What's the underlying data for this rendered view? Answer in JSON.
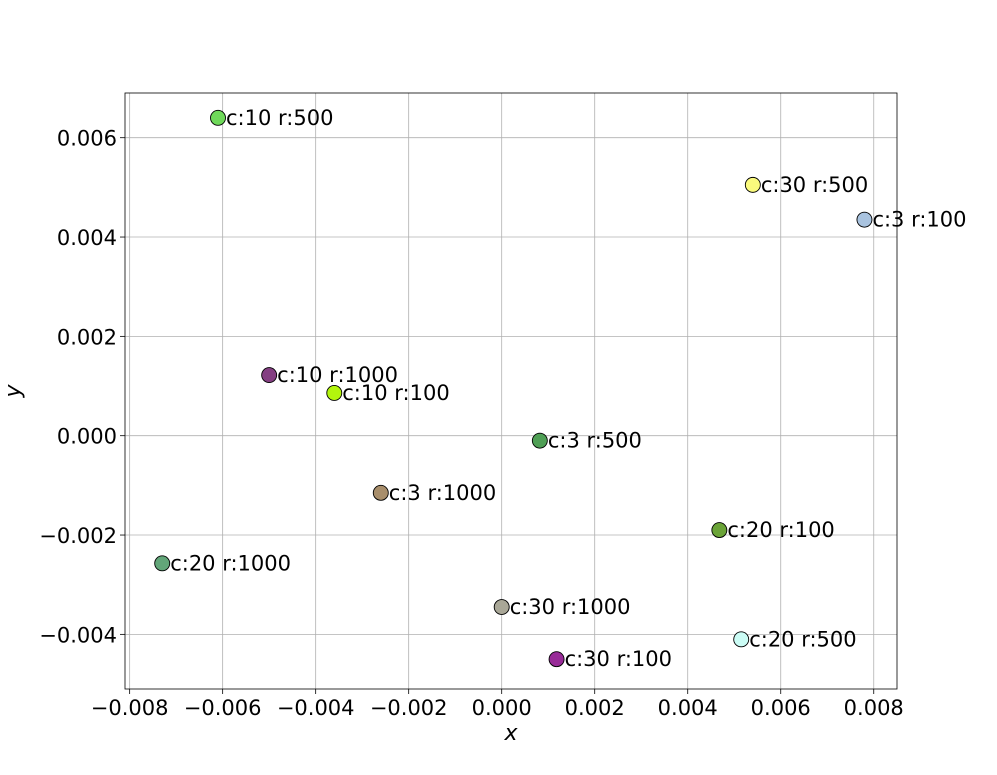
{
  "chart_data": {
    "type": "scatter",
    "title": "",
    "xlabel": "x",
    "ylabel": "y",
    "xlim": [
      -0.0081,
      0.0085
    ],
    "ylim": [
      -0.0051,
      0.0069
    ],
    "grid": true,
    "xticks": [
      -0.008,
      -0.006,
      -0.004,
      -0.002,
      0.0,
      0.002,
      0.004,
      0.006,
      0.008
    ],
    "xtick_labels": [
      "−0.008",
      "−0.006",
      "−0.004",
      "−0.002",
      "0.000",
      "0.002",
      "0.004",
      "0.006",
      "0.008"
    ],
    "yticks": [
      -0.004,
      -0.002,
      0.0,
      0.002,
      0.004,
      0.006
    ],
    "ytick_labels": [
      "−0.004",
      "−0.002",
      "0.000",
      "0.002",
      "0.004",
      "0.006"
    ],
    "points": [
      {
        "label": "c:10 r:500",
        "x": -0.0061,
        "y": 0.0064,
        "color": "#6fd95a"
      },
      {
        "label": "c:30 r:500",
        "x": 0.0054,
        "y": 0.00505,
        "color": "#fafa7d"
      },
      {
        "label": "c:3 r:100",
        "x": 0.0078,
        "y": 0.00435,
        "color": "#a9c3df"
      },
      {
        "label": "c:10 r:1000",
        "x": -0.005,
        "y": 0.00122,
        "color": "#843f82"
      },
      {
        "label": "c:10 r:100",
        "x": -0.0036,
        "y": 0.00086,
        "color": "#b3f50d"
      },
      {
        "label": "c:3 r:500",
        "x": 0.00082,
        "y": -0.0001,
        "color": "#4f9f55"
      },
      {
        "label": "c:3 r:1000",
        "x": -0.0026,
        "y": -0.00115,
        "color": "#a88e6b"
      },
      {
        "label": "c:20 r:100",
        "x": 0.00468,
        "y": -0.0019,
        "color": "#6aa337"
      },
      {
        "label": "c:20 r:1000",
        "x": -0.0073,
        "y": -0.00257,
        "color": "#62a679"
      },
      {
        "label": "c:30 r:1000",
        "x": 0.0,
        "y": -0.00345,
        "color": "#a9a797"
      },
      {
        "label": "c:20 r:500",
        "x": 0.00515,
        "y": -0.0041,
        "color": "#cbfcf5"
      },
      {
        "label": "c:30 r:100",
        "x": 0.00118,
        "y": -0.0045,
        "color": "#982b98"
      }
    ]
  }
}
